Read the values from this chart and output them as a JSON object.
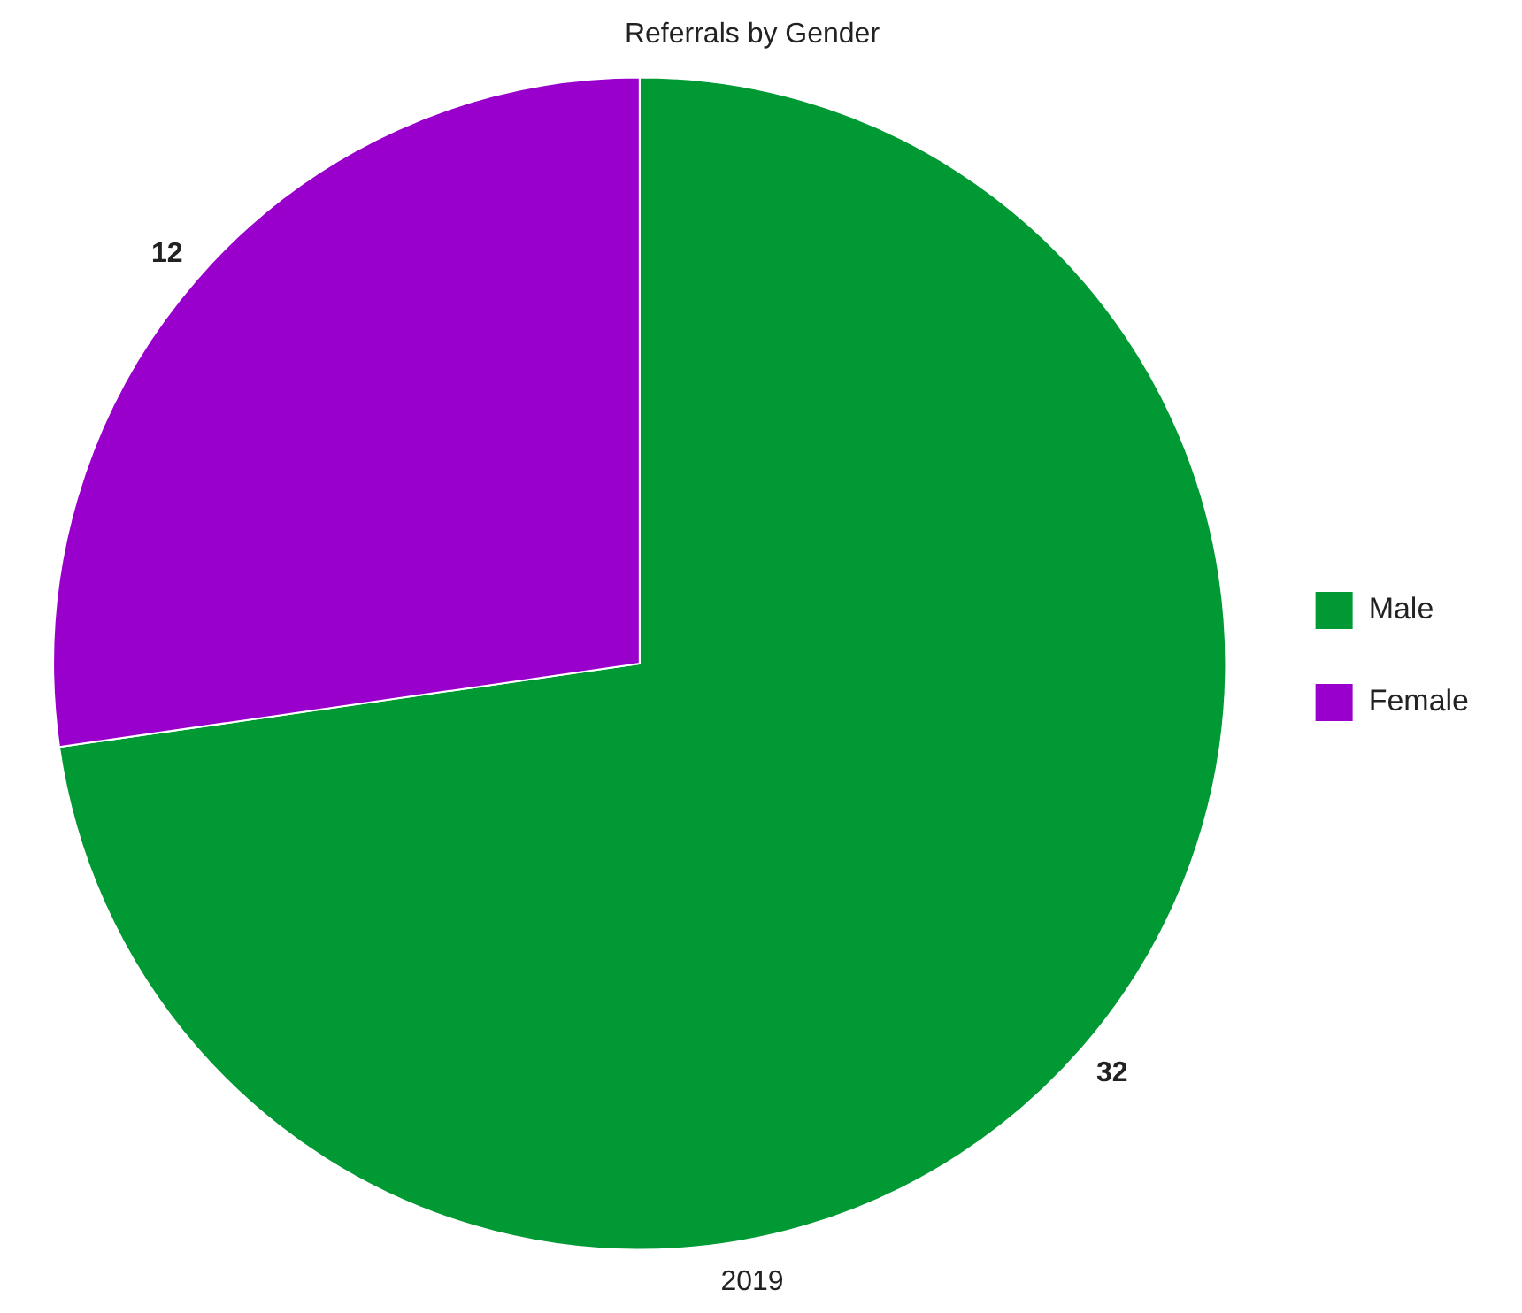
{
  "chart_data": {
    "type": "pie",
    "title": "Referrals by Gender",
    "xlabel": "2019",
    "categories": [
      "Male",
      "Female"
    ],
    "values": [
      32,
      12
    ],
    "colors": [
      "#009933",
      "#9900cc"
    ],
    "data_labels": true,
    "legend": "right"
  }
}
